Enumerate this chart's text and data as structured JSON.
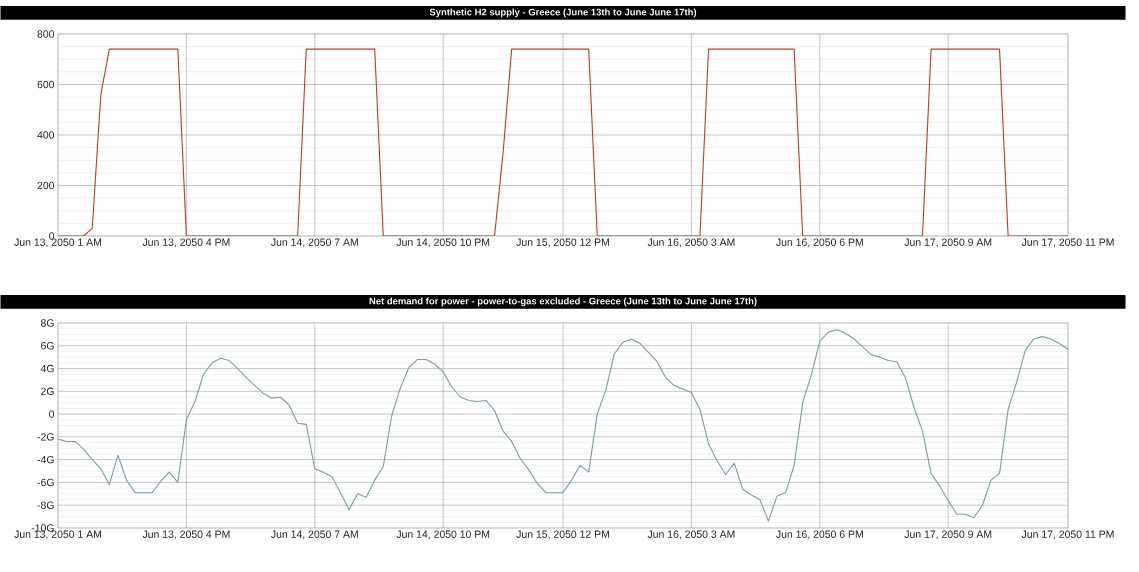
{
  "chart_data": [
    {
      "type": "line",
      "title": "Synthetic H2 supply - Greece (June 13th to June June 17th)",
      "grid": true,
      "x": [
        "2050-06-13T01:00",
        "2050-06-13T04:00",
        "2050-06-13T05:00",
        "2050-06-13T06:00",
        "2050-06-13T07:00",
        "2050-06-13T15:00",
        "2050-06-13T16:00",
        "2050-06-14T05:00",
        "2050-06-14T06:00",
        "2050-06-14T14:00",
        "2050-06-14T15:00",
        "2050-06-15T04:00",
        "2050-06-15T05:00",
        "2050-06-15T06:00",
        "2050-06-15T15:00",
        "2050-06-15T16:00",
        "2050-06-16T04:00",
        "2050-06-16T05:00",
        "2050-06-16T15:00",
        "2050-06-16T16:00",
        "2050-06-17T06:00",
        "2050-06-17T07:00",
        "2050-06-17T15:00",
        "2050-06-17T16:00",
        "2050-06-17T23:00"
      ],
      "series": [
        {
          "color": "#c23b22",
          "values": [
            0,
            0,
            30,
            560,
            740,
            740,
            0,
            0,
            740,
            740,
            0,
            0,
            330,
            740,
            740,
            0,
            0,
            740,
            740,
            0,
            0,
            740,
            740,
            0,
            0
          ]
        }
      ],
      "xlim": [
        "2050-06-13T01:00",
        "2050-06-17T23:00"
      ],
      "ylim": [
        0,
        800
      ],
      "yticks": [
        0,
        200,
        400,
        600,
        800
      ],
      "xticks": [
        {
          "value": "2050-06-13T01:00",
          "label": "Jun 13, 2050 1 AM"
        },
        {
          "value": "2050-06-13T16:00",
          "label": "Jun 13, 2050 4 PM"
        },
        {
          "value": "2050-06-14T07:00",
          "label": "Jun 14, 2050 7 AM"
        },
        {
          "value": "2050-06-14T22:00",
          "label": "Jun 14, 2050 10 PM"
        },
        {
          "value": "2050-06-15T12:00",
          "label": "Jun 15, 2050 12 PM"
        },
        {
          "value": "2050-06-16T03:00",
          "label": "Jun 16, 2050 3 AM"
        },
        {
          "value": "2050-06-16T18:00",
          "label": "Jun 16, 2050 6 PM"
        },
        {
          "value": "2050-06-17T09:00",
          "label": "Jun 17, 2050 9 AM"
        },
        {
          "value": "2050-06-17T23:00",
          "label": "Jun 17, 2050 11 PM"
        }
      ]
    },
    {
      "type": "line",
      "title": "Net demand for power - power-to-gas excluded - Greece (June 13th to June June 17th)",
      "grid": true,
      "x": [
        "2050-06-13T01:00",
        "2050-06-13T02:00",
        "2050-06-13T03:00",
        "2050-06-13T04:00",
        "2050-06-13T05:00",
        "2050-06-13T06:00",
        "2050-06-13T07:00",
        "2050-06-13T08:00",
        "2050-06-13T09:00",
        "2050-06-13T10:00",
        "2050-06-13T11:00",
        "2050-06-13T12:00",
        "2050-06-13T13:00",
        "2050-06-13T14:00",
        "2050-06-13T15:00",
        "2050-06-13T16:00",
        "2050-06-13T17:00",
        "2050-06-13T18:00",
        "2050-06-13T19:00",
        "2050-06-13T20:00",
        "2050-06-13T21:00",
        "2050-06-13T22:00",
        "2050-06-13T23:00",
        "2050-06-14T00:00",
        "2050-06-14T01:00",
        "2050-06-14T02:00",
        "2050-06-14T03:00",
        "2050-06-14T04:00",
        "2050-06-14T05:00",
        "2050-06-14T06:00",
        "2050-06-14T07:00",
        "2050-06-14T08:00",
        "2050-06-14T09:00",
        "2050-06-14T10:00",
        "2050-06-14T11:00",
        "2050-06-14T12:00",
        "2050-06-14T13:00",
        "2050-06-14T14:00",
        "2050-06-14T15:00",
        "2050-06-14T16:00",
        "2050-06-14T17:00",
        "2050-06-14T18:00",
        "2050-06-14T19:00",
        "2050-06-14T20:00",
        "2050-06-14T21:00",
        "2050-06-14T22:00",
        "2050-06-14T23:00",
        "2050-06-15T00:00",
        "2050-06-15T01:00",
        "2050-06-15T02:00",
        "2050-06-15T03:00",
        "2050-06-15T04:00",
        "2050-06-15T05:00",
        "2050-06-15T06:00",
        "2050-06-15T07:00",
        "2050-06-15T08:00",
        "2050-06-15T09:00",
        "2050-06-15T10:00",
        "2050-06-15T11:00",
        "2050-06-15T12:00",
        "2050-06-15T13:00",
        "2050-06-15T14:00",
        "2050-06-15T15:00",
        "2050-06-15T16:00",
        "2050-06-15T17:00",
        "2050-06-15T18:00",
        "2050-06-15T19:00",
        "2050-06-15T20:00",
        "2050-06-15T21:00",
        "2050-06-15T22:00",
        "2050-06-15T23:00",
        "2050-06-16T00:00",
        "2050-06-16T01:00",
        "2050-06-16T02:00",
        "2050-06-16T03:00",
        "2050-06-16T04:00",
        "2050-06-16T05:00",
        "2050-06-16T06:00",
        "2050-06-16T07:00",
        "2050-06-16T08:00",
        "2050-06-16T09:00",
        "2050-06-16T10:00",
        "2050-06-16T11:00",
        "2050-06-16T12:00",
        "2050-06-16T13:00",
        "2050-06-16T14:00",
        "2050-06-16T15:00",
        "2050-06-16T16:00",
        "2050-06-16T17:00",
        "2050-06-16T18:00",
        "2050-06-16T19:00",
        "2050-06-16T20:00",
        "2050-06-16T21:00",
        "2050-06-16T22:00",
        "2050-06-16T23:00",
        "2050-06-17T00:00",
        "2050-06-17T01:00",
        "2050-06-17T02:00",
        "2050-06-17T03:00",
        "2050-06-17T04:00",
        "2050-06-17T05:00",
        "2050-06-17T06:00",
        "2050-06-17T07:00",
        "2050-06-17T08:00",
        "2050-06-17T09:00",
        "2050-06-17T10:00",
        "2050-06-17T11:00",
        "2050-06-17T12:00",
        "2050-06-17T13:00",
        "2050-06-17T14:00",
        "2050-06-17T15:00",
        "2050-06-17T16:00",
        "2050-06-17T17:00",
        "2050-06-17T18:00",
        "2050-06-17T19:00",
        "2050-06-17T20:00",
        "2050-06-17T21:00",
        "2050-06-17T22:00",
        "2050-06-17T23:00"
      ],
      "series": [
        {
          "color": "#7a9ea8",
          "values": [
            -2.2,
            -2.4,
            -2.4,
            -3.1,
            -4.0,
            -4.8,
            -6.2,
            -3.6,
            -5.8,
            -6.9,
            -6.9,
            -6.9,
            -5.9,
            -5.1,
            -6.0,
            -0.5,
            1.1,
            3.5,
            4.5,
            4.9,
            4.7,
            4.0,
            3.2,
            2.5,
            1.8,
            1.4,
            1.5,
            0.8,
            -0.8,
            -0.9,
            -4.8,
            -5.1,
            -5.5,
            -6.9,
            -8.4,
            -7.0,
            -7.3,
            -5.8,
            -4.6,
            -0.1,
            2.3,
            4.1,
            4.8,
            4.8,
            4.4,
            3.7,
            2.4,
            1.5,
            1.2,
            1.1,
            1.2,
            0.3,
            -1.5,
            -2.4,
            -3.9,
            -4.9,
            -6.1,
            -6.9,
            -6.9,
            -6.9,
            -5.8,
            -4.5,
            -5.1,
            0,
            2.1,
            5.3,
            6.3,
            6.6,
            6.2,
            5.4,
            4.6,
            3.2,
            2.5,
            2.2,
            1.9,
            0.4,
            -2.6,
            -4.1,
            -5.3,
            -4.3,
            -6.6,
            -7.1,
            -7.5,
            -9.4,
            -7.2,
            -6.9,
            -4.5,
            1.0,
            3.4,
            6.4,
            7.2,
            7.4,
            7.1,
            6.6,
            5.9,
            5.2,
            5.0,
            4.7,
            4.6,
            3.2,
            0.6,
            -1.5,
            -5.2,
            -6.3,
            -7.6,
            -8.8,
            -8.8,
            -9.1,
            -8.0,
            -5.8,
            -5.2,
            0.4,
            2.8,
            5.6,
            6.6,
            6.8,
            6.6,
            6.2,
            5.7
          ]
        }
      ],
      "xlim": [
        "2050-06-13T01:00",
        "2050-06-17T23:00"
      ],
      "ylim": [
        -10,
        8
      ],
      "yticks": [
        {
          "value": -10,
          "label": "-10G"
        },
        {
          "value": -8,
          "label": "-8G"
        },
        {
          "value": -6,
          "label": "-6G"
        },
        {
          "value": -4,
          "label": "-4G"
        },
        {
          "value": -2,
          "label": "-2G"
        },
        0,
        {
          "value": 2,
          "label": "2G"
        },
        {
          "value": 4,
          "label": "4G"
        },
        {
          "value": 6,
          "label": "6G"
        },
        {
          "value": 8,
          "label": "8G"
        }
      ],
      "xticks": [
        {
          "value": "2050-06-13T01:00",
          "label": "Jun 13, 2050 1 AM"
        },
        {
          "value": "2050-06-13T16:00",
          "label": "Jun 13, 2050 4 PM"
        },
        {
          "value": "2050-06-14T07:00",
          "label": "Jun 14, 2050 7 AM"
        },
        {
          "value": "2050-06-14T22:00",
          "label": "Jun 14, 2050 10 PM"
        },
        {
          "value": "2050-06-15T12:00",
          "label": "Jun 15, 2050 12 PM"
        },
        {
          "value": "2050-06-16T03:00",
          "label": "Jun 16, 2050 3 AM"
        },
        {
          "value": "2050-06-16T18:00",
          "label": "Jun 16, 2050 6 PM"
        },
        {
          "value": "2050-06-17T09:00",
          "label": "Jun 17, 2050 9 AM"
        },
        {
          "value": "2050-06-17T23:00",
          "label": "Jun 17, 2050 11 PM"
        }
      ]
    }
  ]
}
